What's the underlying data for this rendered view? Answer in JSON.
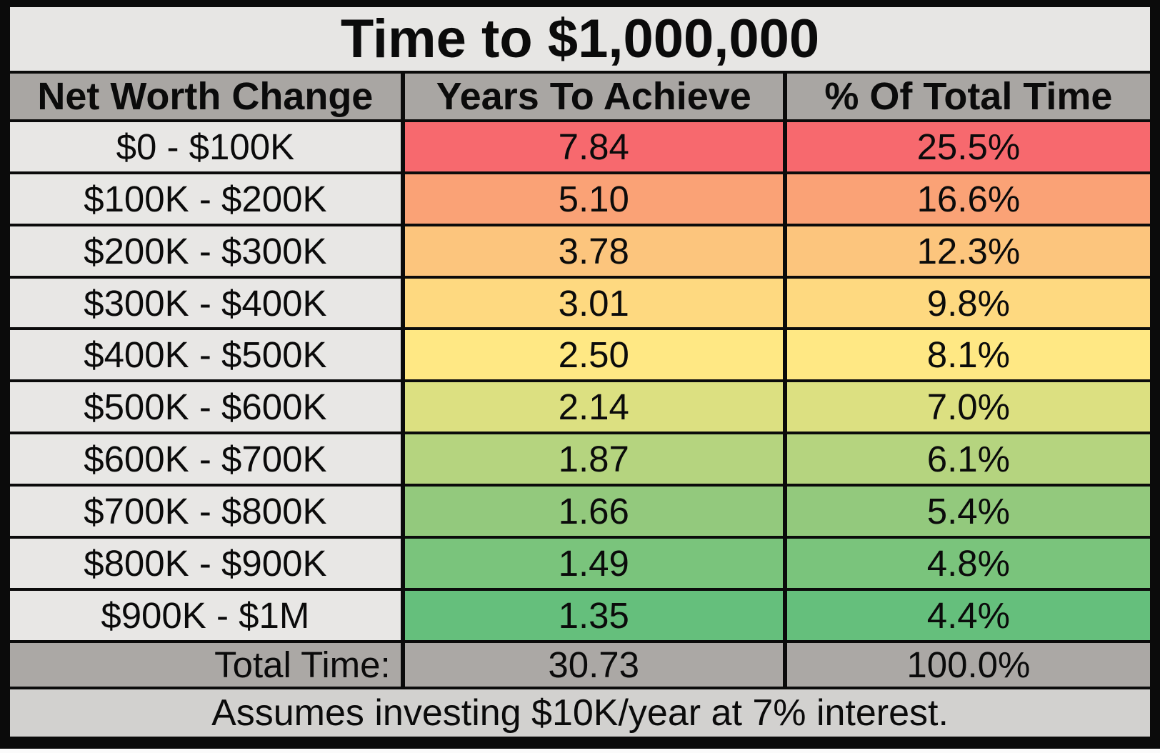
{
  "chart_data": {
    "type": "table",
    "title": "Time to $1,000,000",
    "columns": [
      "Net Worth Change",
      "Years To Achieve",
      "% Of Total Time"
    ],
    "rows": [
      {
        "label": "$0 - $100K",
        "years": "7.84",
        "percent": "25.5%",
        "color": "#F7696E"
      },
      {
        "label": "$100K - $200K",
        "years": "5.10",
        "percent": "16.6%",
        "color": "#FAA276"
      },
      {
        "label": "$200K - $300K",
        "years": "3.78",
        "percent": "12.3%",
        "color": "#FCC57D"
      },
      {
        "label": "$300K - $400K",
        "years": "3.01",
        "percent": "9.8%",
        "color": "#FED980"
      },
      {
        "label": "$400K - $500K",
        "years": "2.50",
        "percent": "8.1%",
        "color": "#FFE884"
      },
      {
        "label": "$500K - $600K",
        "years": "2.14",
        "percent": "7.0%",
        "color": "#DCE081"
      },
      {
        "label": "$600K - $700K",
        "years": "1.87",
        "percent": "6.1%",
        "color": "#B5D47F"
      },
      {
        "label": "$700K - $800K",
        "years": "1.66",
        "percent": "5.4%",
        "color": "#93C97D"
      },
      {
        "label": "$800K - $900K",
        "years": "1.49",
        "percent": "4.8%",
        "color": "#7AC47C"
      },
      {
        "label": "$900K - $1M",
        "years": "1.35",
        "percent": "4.4%",
        "color": "#65BF7C"
      }
    ],
    "total": {
      "label": "Total Time:",
      "years": "30.73",
      "percent": "100.0%"
    },
    "footnote": "Assumes investing $10K/year at 7% interest.",
    "layout_hints": {
      "color_scale": "excel 3-color scale red-yellow-green mapped to Years To Achieve (max 7.84 = red, min 1.35 = green)",
      "value_columns_share_row_color": true
    }
  },
  "colors": {
    "title_bg": "#E7E6E4",
    "header_bg": "#A9A6A3",
    "label_bg": "#E8E7E5",
    "total_bg": "#ABA8A5",
    "footer_bg": "#D2D1CF",
    "border": "#0b0b0b"
  }
}
